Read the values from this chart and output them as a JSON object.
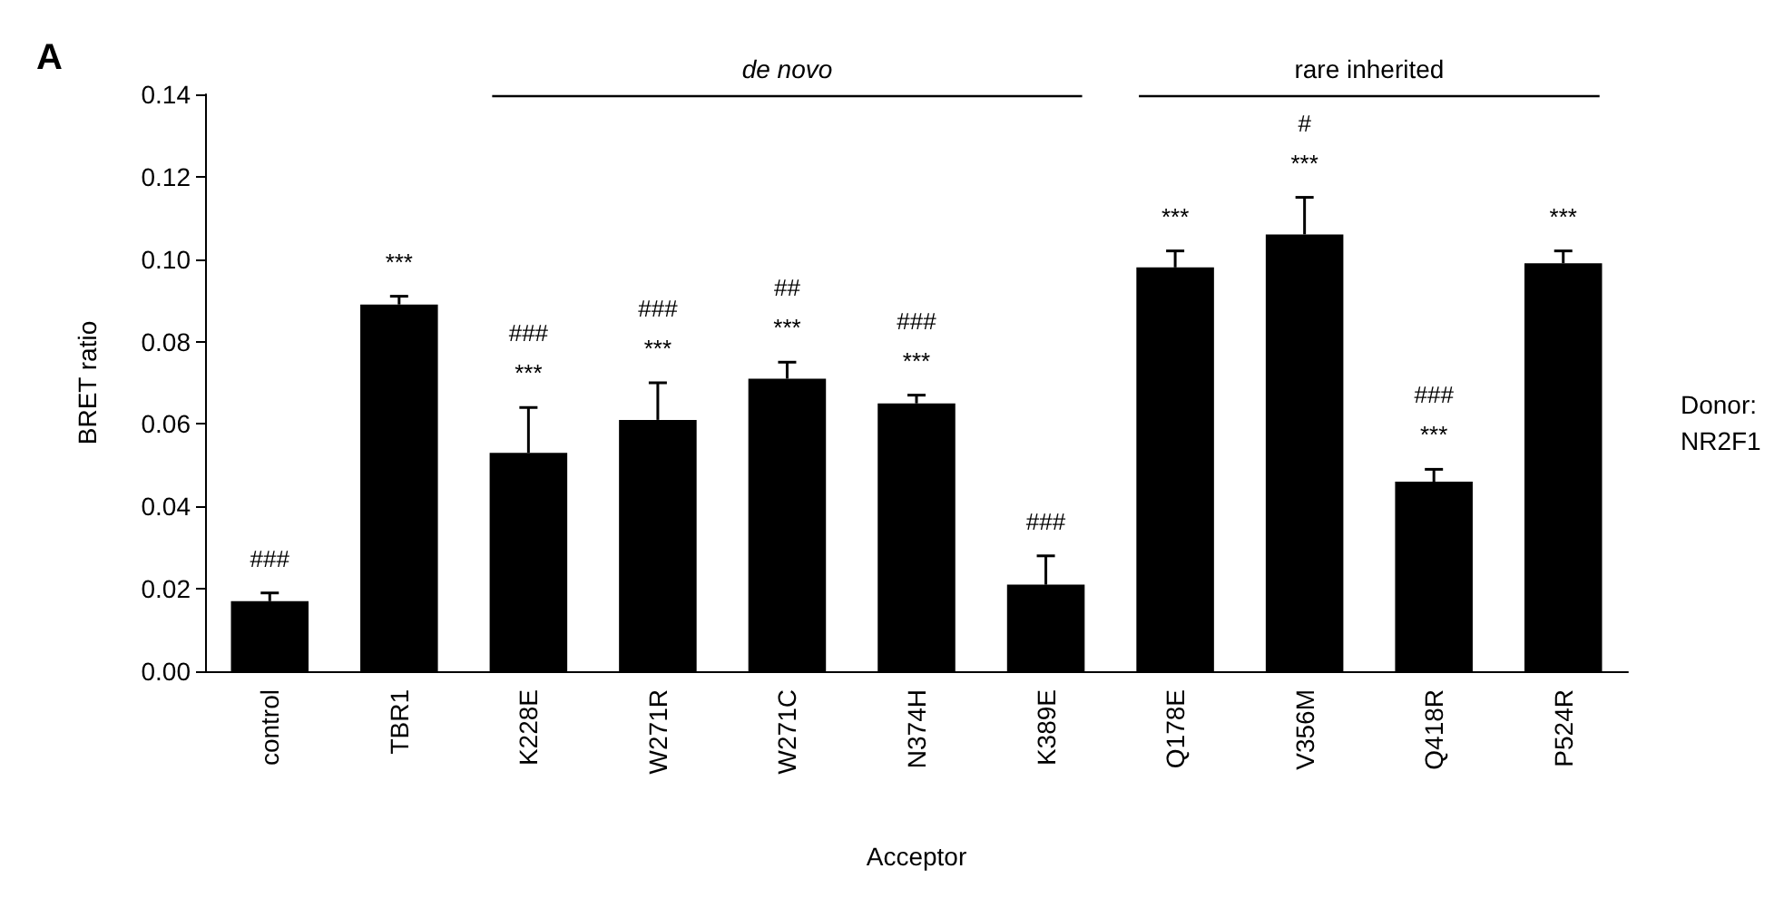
{
  "chart_data": {
    "type": "bar",
    "xlabel": "Acceptor",
    "ylabel": "BRET ratio",
    "categories": [
      "control",
      "TBR1",
      "K228E",
      "W271R",
      "W271C",
      "N374H",
      "K389E",
      "Q178E",
      "V356M",
      "Q418R",
      "P524R"
    ],
    "values": [
      0.017,
      0.089,
      0.053,
      0.061,
      0.071,
      0.065,
      0.021,
      0.098,
      0.106,
      0.046,
      0.099
    ],
    "errors": [
      0.002,
      0.002,
      0.011,
      0.009,
      0.004,
      0.002,
      0.007,
      0.004,
      0.009,
      0.003,
      0.003
    ],
    "color": "#000000",
    "ylim": [
      0,
      0.14
    ],
    "yticks": [
      {
        "value": 0,
        "label": "0.00"
      },
      {
        "value": 0.02,
        "label": "0.02"
      },
      {
        "value": 0.04,
        "label": "0.04"
      },
      {
        "value": 0.06,
        "label": "0.06"
      },
      {
        "value": 0.08,
        "label": "0.08"
      },
      {
        "value": 0.1,
        "label": "0.10"
      },
      {
        "value": 0.12,
        "label": "0.12"
      },
      {
        "value": 0.14,
        "label": "0.14"
      }
    ],
    "annotations": [
      "A",
      "de novo",
      "rare inherited",
      "Donor:\nNR2F1",
      {
        "text": "###",
        "x": "control",
        "y": 0.017
      },
      {
        "text": "***",
        "x": "TBR1",
        "y": 0.089
      },
      {
        "text": "###\n***",
        "x": "K228E",
        "y": 0.053
      },
      {
        "text": "###\n***",
        "x": "W271R",
        "y": 0.061
      },
      {
        "text": "##\n***",
        "x": "W271C",
        "y": 0.071
      },
      {
        "text": "###\n***",
        "x": "N374H",
        "y": 0.065
      },
      {
        "text": "###",
        "x": "K389E",
        "y": 0.021
      },
      {
        "text": "***",
        "x": "Q178E",
        "y": 0.098
      },
      {
        "text": "#\n***",
        "x": "V356M",
        "y": 0.106
      },
      {
        "text": "###\n***",
        "x": "Q418R",
        "y": 0.046
      },
      {
        "text": "***",
        "x": "P524R",
        "y": 0.099
      }
    ]
  }
}
